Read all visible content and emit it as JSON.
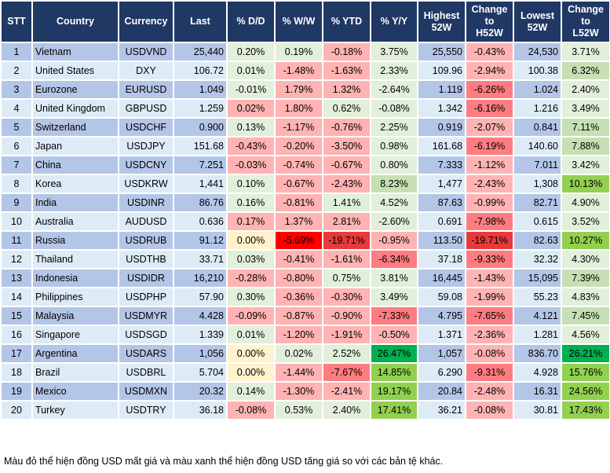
{
  "headers": [
    "STT",
    "Country",
    "Currency",
    "Last",
    "% D/D",
    "% W/W",
    "% YTD",
    "% Y/Y",
    "Highest 52W",
    "Change to H52W",
    "Lowest 52W",
    "Change to L52W"
  ],
  "colors": {
    "header": "#203864",
    "row_dark": "#B4C6E7",
    "row_light": "#DDEBF7",
    "lg": "#E2EFDA",
    "g": "#C6E0B4",
    "bg": "#92D050",
    "dg": "#00B050",
    "p": "#FFB3B3",
    "r": "#FF7C80",
    "mr": "#E83A3A",
    "sr": "#FF0000",
    "y": "#FFF2CC"
  },
  "rows": [
    {
      "stt": "1",
      "country": "Vietnam",
      "currency": "USDVND",
      "last": "25,440",
      "dd": "0.20%",
      "ww": "0.19%",
      "ytd": "-0.18%",
      "yy": "3.75%",
      "high": "25,550",
      "h52": "-0.43%",
      "low": "24,530",
      "l52": "3.71%",
      "col": [
        "lg",
        "lg",
        "p",
        "lg",
        "p",
        "lg"
      ]
    },
    {
      "stt": "2",
      "country": "United States",
      "currency": "DXY",
      "last": "106.72",
      "dd": "0.01%",
      "ww": "-1.48%",
      "ytd": "-1.63%",
      "yy": "2.33%",
      "high": "109.96",
      "h52": "-2.94%",
      "low": "100.38",
      "l52": "6.32%",
      "col": [
        "lg",
        "p",
        "p",
        "lg",
        "p",
        "g"
      ]
    },
    {
      "stt": "3",
      "country": "Eurozone",
      "currency": "EURUSD",
      "last": "1.049",
      "dd": "-0.01%",
      "ww": "1.79%",
      "ytd": "1.32%",
      "yy": "-2.64%",
      "high": "1.119",
      "h52": "-6.26%",
      "low": "1.024",
      "l52": "2.40%",
      "col": [
        "lg",
        "p",
        "p",
        "lg",
        "r",
        "lg"
      ]
    },
    {
      "stt": "4",
      "country": "United Kingdom",
      "currency": "GBPUSD",
      "last": "1.259",
      "dd": "0.02%",
      "ww": "1.80%",
      "ytd": "0.62%",
      "yy": "-0.08%",
      "high": "1.342",
      "h52": "-6.16%",
      "low": "1.216",
      "l52": "3.49%",
      "col": [
        "p",
        "p",
        "lg",
        "lg",
        "r",
        "lg"
      ]
    },
    {
      "stt": "5",
      "country": "Switzerland",
      "currency": "USDCHF",
      "last": "0.900",
      "dd": "0.13%",
      "ww": "-1.17%",
      "ytd": "-0.76%",
      "yy": "2.25%",
      "high": "0.919",
      "h52": "-2.07%",
      "low": "0.841",
      "l52": "7.11%",
      "col": [
        "lg",
        "p",
        "p",
        "lg",
        "p",
        "g"
      ]
    },
    {
      "stt": "6",
      "country": "Japan",
      "currency": "USDJPY",
      "last": "151.68",
      "dd": "-0.43%",
      "ww": "-0.20%",
      "ytd": "-3.50%",
      "yy": "0.98%",
      "high": "161.68",
      "h52": "-6.19%",
      "low": "140.60",
      "l52": "7.88%",
      "col": [
        "p",
        "p",
        "p",
        "lg",
        "r",
        "g"
      ]
    },
    {
      "stt": "7",
      "country": "China",
      "currency": "USDCNY",
      "last": "7.251",
      "dd": "-0.03%",
      "ww": "-0.74%",
      "ytd": "-0.67%",
      "yy": "0.80%",
      "high": "7.333",
      "h52": "-1.12%",
      "low": "7.011",
      "l52": "3.42%",
      "col": [
        "p",
        "p",
        "p",
        "lg",
        "p",
        "lg"
      ]
    },
    {
      "stt": "8",
      "country": "Korea",
      "currency": "USDKRW",
      "last": "1,441",
      "dd": "0.10%",
      "ww": "-0.67%",
      "ytd": "-2.43%",
      "yy": "8.23%",
      "high": "1,477",
      "h52": "-2.43%",
      "low": "1,308",
      "l52": "10.13%",
      "col": [
        "lg",
        "p",
        "p",
        "g",
        "p",
        "bg"
      ]
    },
    {
      "stt": "9",
      "country": "India",
      "currency": "USDINR",
      "last": "86.76",
      "dd": "0.16%",
      "ww": "-0.81%",
      "ytd": "1.41%",
      "yy": "4.52%",
      "high": "87.63",
      "h52": "-0.99%",
      "low": "82.71",
      "l52": "4.90%",
      "col": [
        "lg",
        "p",
        "lg",
        "lg",
        "p",
        "lg"
      ]
    },
    {
      "stt": "10",
      "country": "Australia",
      "currency": "AUDUSD",
      "last": "0.636",
      "dd": "0.17%",
      "ww": "1.37%",
      "ytd": "2.81%",
      "yy": "-2.60%",
      "high": "0.691",
      "h52": "-7.98%",
      "low": "0.615",
      "l52": "3.52%",
      "col": [
        "p",
        "p",
        "p",
        "lg",
        "r",
        "lg"
      ]
    },
    {
      "stt": "11",
      "country": "Russia",
      "currency": "USDRUB",
      "last": "91.12",
      "dd": "0.00%",
      "ww": "-5.69%",
      "ytd": "-19.71%",
      "yy": "-0.95%",
      "high": "113.50",
      "h52": "-19.71%",
      "low": "82.63",
      "l52": "10.27%",
      "col": [
        "y",
        "sr",
        "mr",
        "p",
        "mr",
        "bg"
      ]
    },
    {
      "stt": "12",
      "country": "Thailand",
      "currency": "USDTHB",
      "last": "33.71",
      "dd": "0.03%",
      "ww": "-0.41%",
      "ytd": "-1.61%",
      "yy": "-6.34%",
      "high": "37.18",
      "h52": "-9.33%",
      "low": "32.32",
      "l52": "4.30%",
      "col": [
        "lg",
        "p",
        "p",
        "r",
        "r",
        "lg"
      ]
    },
    {
      "stt": "13",
      "country": "Indonesia",
      "currency": "USDIDR",
      "last": "16,210",
      "dd": "-0.28%",
      "ww": "-0.80%",
      "ytd": "0.75%",
      "yy": "3.81%",
      "high": "16,445",
      "h52": "-1.43%",
      "low": "15,095",
      "l52": "7.39%",
      "col": [
        "p",
        "p",
        "lg",
        "lg",
        "p",
        "g"
      ]
    },
    {
      "stt": "14",
      "country": "Philippines",
      "currency": "USDPHP",
      "last": "57.90",
      "dd": "0.30%",
      "ww": "-0.36%",
      "ytd": "-0.30%",
      "yy": "3.49%",
      "high": "59.08",
      "h52": "-1.99%",
      "low": "55.23",
      "l52": "4.83%",
      "col": [
        "lg",
        "p",
        "p",
        "lg",
        "p",
        "lg"
      ]
    },
    {
      "stt": "15",
      "country": "Malaysia",
      "currency": "USDMYR",
      "last": "4.428",
      "dd": "-0.09%",
      "ww": "-0.87%",
      "ytd": "-0.90%",
      "yy": "-7.33%",
      "high": "4.795",
      "h52": "-7.65%",
      "low": "4.121",
      "l52": "7.45%",
      "col": [
        "p",
        "p",
        "p",
        "r",
        "r",
        "g"
      ]
    },
    {
      "stt": "16",
      "country": "Singapore",
      "currency": "USDSGD",
      "last": "1.339",
      "dd": "0.01%",
      "ww": "-1.20%",
      "ytd": "-1.91%",
      "yy": "-0.50%",
      "high": "1.371",
      "h52": "-2.36%",
      "low": "1.281",
      "l52": "4.56%",
      "col": [
        "lg",
        "p",
        "p",
        "p",
        "p",
        "lg"
      ]
    },
    {
      "stt": "17",
      "country": "Argentina",
      "currency": "USDARS",
      "last": "1,056",
      "dd": "0.00%",
      "ww": "0.02%",
      "ytd": "2.52%",
      "yy": "26.47%",
      "high": "1,057",
      "h52": "-0.08%",
      "low": "836.70",
      "l52": "26.21%",
      "col": [
        "y",
        "lg",
        "lg",
        "dg",
        "p",
        "dg"
      ]
    },
    {
      "stt": "18",
      "country": "Brazil",
      "currency": "USDBRL",
      "last": "5.704",
      "dd": "0.00%",
      "ww": "-1.44%",
      "ytd": "-7.67%",
      "yy": "14.85%",
      "high": "6.290",
      "h52": "-9.31%",
      "low": "4.928",
      "l52": "15.76%",
      "col": [
        "y",
        "p",
        "r",
        "bg",
        "r",
        "bg"
      ]
    },
    {
      "stt": "19",
      "country": "Mexico",
      "currency": "USDMXN",
      "last": "20.32",
      "dd": "0.14%",
      "ww": "-1.30%",
      "ytd": "-2.41%",
      "yy": "19.17%",
      "high": "20.84",
      "h52": "-2.48%",
      "low": "16.31",
      "l52": "24.56%",
      "col": [
        "lg",
        "p",
        "p",
        "bg",
        "p",
        "bg"
      ]
    },
    {
      "stt": "20",
      "country": "Turkey",
      "currency": "USDTRY",
      "last": "36.18",
      "dd": "-0.08%",
      "ww": "0.53%",
      "ytd": "2.40%",
      "yy": "17.41%",
      "high": "36.21",
      "h52": "-0.08%",
      "low": "30.81",
      "l52": "17.43%",
      "col": [
        "p",
        "lg",
        "lg",
        "bg",
        "p",
        "bg"
      ]
    }
  ],
  "footnote": "Màu đỏ thể hiện đồng USD mất giá và màu xanh thể hiện đồng USD tăng giá so với các bản tệ khác."
}
